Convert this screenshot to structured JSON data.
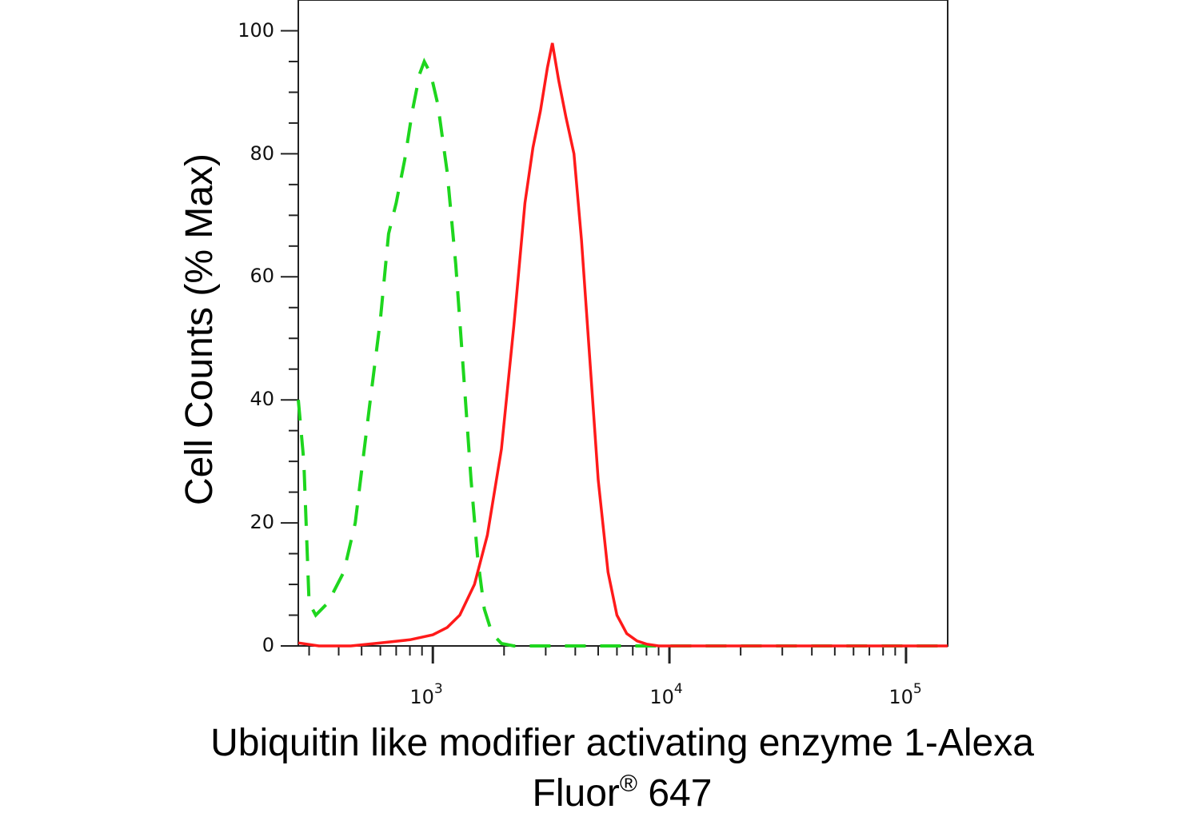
{
  "chart_data": {
    "type": "line",
    "ylabel": "Cell Counts (% Max)",
    "xlabel_line1": "Ubiquitin like modifier activating enzyme 1-Alexa",
    "xlabel_line2_main": "Fluor",
    "xlabel_line2_sup": "®",
    "xlabel_line2_rest": " 647",
    "x_scale": "log",
    "xlim": [
      270,
      150000
    ],
    "ylim": [
      0,
      105
    ],
    "y_ticks": [
      "0",
      "20",
      "40",
      "60",
      "80",
      "100"
    ],
    "x_ticks": [
      {
        "base": "10",
        "exp": "3",
        "value": 1000
      },
      {
        "base": "10",
        "exp": "4",
        "value": 10000
      },
      {
        "base": "10",
        "exp": "5",
        "value": 100000
      }
    ],
    "grid": false,
    "legend": "none",
    "series": [
      {
        "color": "#ff1a1a",
        "style": "solid",
        "points": [
          [
            270,
            0.5
          ],
          [
            330,
            0
          ],
          [
            450,
            0
          ],
          [
            600,
            0.5
          ],
          [
            800,
            1
          ],
          [
            1000,
            1.8
          ],
          [
            1150,
            3
          ],
          [
            1300,
            5
          ],
          [
            1500,
            10
          ],
          [
            1700,
            18
          ],
          [
            1950,
            32
          ],
          [
            2200,
            52
          ],
          [
            2450,
            72
          ],
          [
            2650,
            81
          ],
          [
            2850,
            87
          ],
          [
            3050,
            94
          ],
          [
            3200,
            98
          ],
          [
            3400,
            92
          ],
          [
            3650,
            86
          ],
          [
            3950,
            80
          ],
          [
            4250,
            66
          ],
          [
            4600,
            47
          ],
          [
            5000,
            27
          ],
          [
            5500,
            12
          ],
          [
            6000,
            5
          ],
          [
            6600,
            2
          ],
          [
            7300,
            0.8
          ],
          [
            8000,
            0.3
          ],
          [
            9000,
            0
          ],
          [
            20000,
            0
          ],
          [
            60000,
            0
          ],
          [
            150000,
            0
          ]
        ]
      },
      {
        "color": "#1ed61e",
        "style": "dashed",
        "points": [
          [
            270,
            40
          ],
          [
            285,
            30
          ],
          [
            300,
            7
          ],
          [
            320,
            5
          ],
          [
            360,
            7
          ],
          [
            420,
            12
          ],
          [
            470,
            20
          ],
          [
            540,
            39
          ],
          [
            600,
            53
          ],
          [
            650,
            67
          ],
          [
            700,
            72
          ],
          [
            760,
            79
          ],
          [
            820,
            87
          ],
          [
            880,
            93
          ],
          [
            920,
            95
          ],
          [
            980,
            93
          ],
          [
            1050,
            88
          ],
          [
            1150,
            77
          ],
          [
            1250,
            62
          ],
          [
            1350,
            44
          ],
          [
            1450,
            27
          ],
          [
            1550,
            14
          ],
          [
            1650,
            6
          ],
          [
            1780,
            2
          ],
          [
            1950,
            0.4
          ],
          [
            2200,
            0
          ],
          [
            10000,
            0
          ],
          [
            150000,
            0
          ]
        ]
      }
    ]
  }
}
